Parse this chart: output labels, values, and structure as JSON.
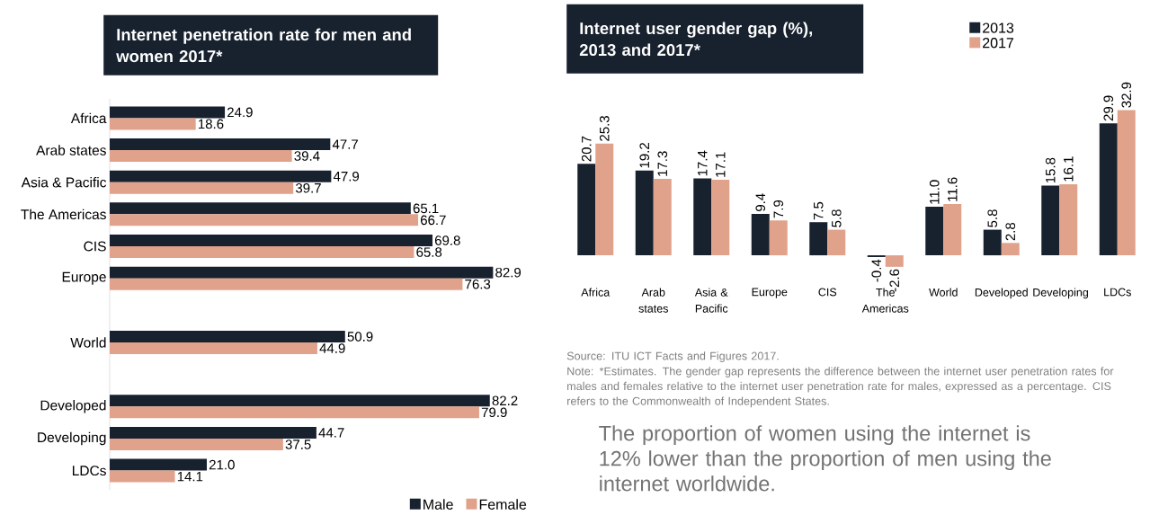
{
  "chart_data": [
    {
      "type": "bar",
      "orientation": "horizontal",
      "title": "Internet penetration rate for men and women 2017*",
      "categories": [
        "Africa",
        "Arab states",
        "Asia & Pacific",
        "The Americas",
        "CIS",
        "Europe",
        null,
        "World",
        null,
        "Developed",
        "Developing",
        "LDCs"
      ],
      "series": [
        {
          "name": "Male",
          "color": "#18222f",
          "values": [
            24.9,
            47.7,
            47.9,
            65.1,
            69.8,
            82.9,
            null,
            50.9,
            null,
            82.2,
            44.7,
            21.0
          ],
          "value_labels": [
            "24.9",
            "47.7",
            "47.9",
            "65.1",
            "69.8",
            "82.9",
            null,
            "50.9",
            null,
            "82.2",
            "44.7",
            "21.0"
          ]
        },
        {
          "name": "Female",
          "color": "#e1a28c",
          "values": [
            18.6,
            39.4,
            39.7,
            66.7,
            65.8,
            76.3,
            null,
            44.9,
            null,
            79.9,
            37.5,
            14.1
          ],
          "value_labels": [
            "18.6",
            "39.4",
            "39.7",
            "66.7",
            "65.8",
            "76.3",
            null,
            "44.9",
            null,
            "79.9",
            "37.5",
            "14.1"
          ]
        }
      ],
      "legend": "bottom"
    },
    {
      "type": "bar",
      "title": "Internet user gender gap (%), 2013 and 2017*",
      "categories": [
        "Africa",
        "Arab states",
        "Asia & Pacific",
        "Europe",
        "CIS",
        "The Americas",
        "World",
        "Developed",
        "Developing",
        "LDCs"
      ],
      "series": [
        {
          "name": "2013",
          "color": "#18222f",
          "values": [
            20.7,
            19.2,
            17.4,
            9.4,
            7.5,
            -0.4,
            11.0,
            5.8,
            15.8,
            29.9
          ],
          "value_labels": [
            "20.7",
            "19.2",
            "17.4",
            "9.4",
            "7.5",
            "-0.4",
            "11.0",
            "5.8",
            "15.8",
            "29.9"
          ]
        },
        {
          "name": "2017",
          "color": "#e1a28c",
          "values": [
            25.3,
            17.3,
            17.1,
            7.9,
            5.8,
            -2.6,
            11.6,
            2.8,
            16.1,
            32.9
          ],
          "value_labels": [
            "25.3",
            "17.3",
            "17.1",
            "7.9",
            "5.8",
            "-2.6",
            "11.6",
            "2.8",
            "16.1",
            "32.9"
          ]
        }
      ],
      "legend": "top right",
      "annotations": [
        "Source: ITU ICT Facts and Figures 2017.",
        "Note: *Estimates. The gender gap represents the difference between the internet user penetration rates for males and females relative to the internet user penetration rate for males, expressed as a percentage. CIS refers to the Commonwealth of Independent States.",
        "The proportion of women using the internet is 12% lower than the proportion of men using the internet worldwide."
      ]
    }
  ]
}
